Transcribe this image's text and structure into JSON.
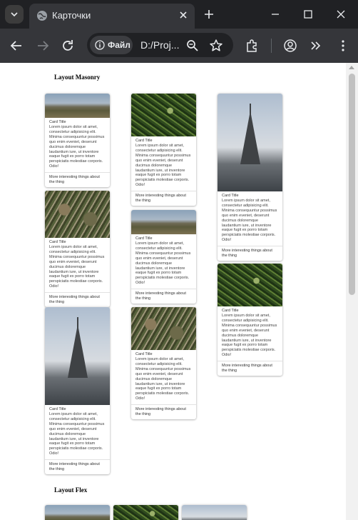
{
  "browser": {
    "tab_title": "Карточки",
    "address_chip": "Файл",
    "url": "D:/Proj..."
  },
  "sections": {
    "masonry_title": "Layout Masonry",
    "flex_title": "Layout Flex"
  },
  "card_text": {
    "title": "Card Title",
    "body": "Lorem ipsum dolor sit amet, consectetur adipisicing elit. Minima consequuntur possimus quo enim eveniet, deserunt ducimus doloremque laudantium iure, ut inventore eaque fugit ex porro totam perspiciatis molestiae corporis. Odio!",
    "footer": "More interesting things about the thing"
  },
  "colors": {
    "page_bg": "#ffffff",
    "chrome_dark": "#202124",
    "chrome_toolbar": "#35363a"
  }
}
